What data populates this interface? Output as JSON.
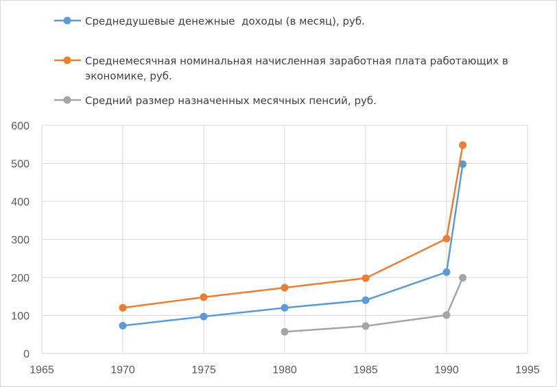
{
  "chart_data": {
    "type": "scatter",
    "mode": "lines+markers",
    "title": "",
    "xlabel": "",
    "ylabel": "",
    "xlim": [
      1965,
      1995
    ],
    "ylim": [
      0,
      600
    ],
    "x_ticks": [
      "1965",
      "1970",
      "1975",
      "1980",
      "1985",
      "1990",
      "1995"
    ],
    "y_ticks": [
      "0",
      "100",
      "200",
      "300",
      "400",
      "500",
      "600"
    ],
    "grid": true,
    "legend_position": "top-left",
    "series": [
      {
        "name": "Среднедушевые денежные  доходы (в месяц), руб.",
        "color": "#5b9bd5",
        "points": [
          [
            1970,
            73
          ],
          [
            1975,
            97
          ],
          [
            1980,
            120
          ],
          [
            1985,
            140
          ],
          [
            1990,
            214
          ],
          [
            1991,
            498
          ]
        ]
      },
      {
        "name": "Среднемесячная номинальная начисленная заработная плата работающих в экономике, руб.",
        "color": "#ed7d31",
        "points": [
          [
            1970,
            120
          ],
          [
            1975,
            148
          ],
          [
            1980,
            173
          ],
          [
            1985,
            198
          ],
          [
            1990,
            302
          ],
          [
            1991,
            548
          ]
        ]
      },
      {
        "name": "Средний размер назначенных месячных пенсий, руб.",
        "color": "#a5a5a5",
        "points": [
          [
            1980,
            57
          ],
          [
            1985,
            72
          ],
          [
            1990,
            101
          ],
          [
            1991,
            199
          ]
        ]
      }
    ],
    "legend_lines": [
      [
        "Среднедушевые денежные  доходы (в месяц), руб."
      ],
      [
        "Среднемесячная номинальная начисленная заработная плата работающих в",
        "экономике, руб."
      ],
      [
        "Средний размер назначенных месячных пенсий, руб."
      ]
    ]
  }
}
